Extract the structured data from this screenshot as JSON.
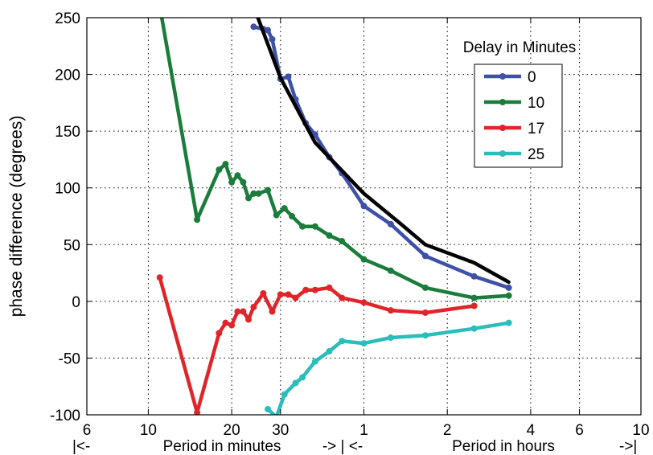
{
  "chart_data": {
    "type": "line",
    "ylabel": "phase difference (degrees)",
    "ylim": [
      -100,
      250
    ],
    "y_ticks": [
      -100,
      -50,
      0,
      50,
      100,
      150,
      200,
      250
    ],
    "x_scale": "log",
    "x_unit": "minutes",
    "xlim": [
      6,
      600
    ],
    "x_ticks": [
      {
        "value": 6,
        "label": "6"
      },
      {
        "value": 10,
        "label": "10"
      },
      {
        "value": 20,
        "label": "20"
      },
      {
        "value": 30,
        "label": "30"
      },
      {
        "value": 60,
        "label": "1"
      },
      {
        "value": 120,
        "label": "2"
      },
      {
        "value": 240,
        "label": "4"
      },
      {
        "value": 360,
        "label": "6"
      },
      {
        "value": 600,
        "label": "10"
      }
    ],
    "x_group_labels": [
      "|<-",
      "Period in minutes",
      "-> | <-",
      "Period in hours",
      "->|"
    ],
    "grid": true,
    "legend": {
      "title": "Delay in Minutes",
      "placement": "top-right"
    },
    "series": [
      {
        "name": "0",
        "color": "#3f51a6",
        "markers": true,
        "points": [
          [
            24,
            242
          ],
          [
            26,
            240
          ],
          [
            27,
            239
          ],
          [
            28,
            231
          ],
          [
            30,
            196
          ],
          [
            32,
            198
          ],
          [
            34,
            178
          ],
          [
            37,
            157
          ],
          [
            40,
            147
          ],
          [
            45,
            127
          ],
          [
            50,
            113
          ],
          [
            60,
            84
          ],
          [
            75,
            68
          ],
          [
            100,
            40
          ],
          [
            150,
            22
          ],
          [
            200,
            12
          ]
        ]
      },
      {
        "name": "10",
        "color": "#1a7d3b",
        "markers": true,
        "points": [
          [
            11,
            260
          ],
          [
            15,
            72
          ],
          [
            18,
            116
          ],
          [
            19,
            121
          ],
          [
            20,
            105
          ],
          [
            21,
            111
          ],
          [
            22,
            105
          ],
          [
            23,
            91
          ],
          [
            24,
            95
          ],
          [
            25,
            95
          ],
          [
            27,
            98
          ],
          [
            29,
            76
          ],
          [
            31,
            82
          ],
          [
            33,
            75
          ],
          [
            36,
            66
          ],
          [
            40,
            66
          ],
          [
            45,
            58
          ],
          [
            50,
            53
          ],
          [
            60,
            37
          ],
          [
            75,
            27
          ],
          [
            100,
            12
          ],
          [
            150,
            3
          ],
          [
            200,
            5
          ]
        ]
      },
      {
        "name": "17",
        "color": "#e0252a",
        "markers": true,
        "points": [
          [
            11,
            21
          ],
          [
            15,
            -98
          ],
          [
            18,
            -28
          ],
          [
            19,
            -19
          ],
          [
            20,
            -21
          ],
          [
            21,
            -9
          ],
          [
            22,
            -9
          ],
          [
            23,
            -16
          ],
          [
            24,
            -5
          ],
          [
            26,
            7
          ],
          [
            28,
            -9
          ],
          [
            30,
            6
          ],
          [
            32,
            6
          ],
          [
            34,
            3
          ],
          [
            37,
            10
          ],
          [
            40,
            10
          ],
          [
            45,
            12
          ],
          [
            50,
            3
          ],
          [
            60,
            -1
          ],
          [
            75,
            -8
          ],
          [
            100,
            -10
          ],
          [
            150,
            -4
          ]
        ]
      },
      {
        "name": "25",
        "color": "#2bbcbc",
        "markers": true,
        "points": [
          [
            27,
            -95
          ],
          [
            29,
            -102
          ],
          [
            31,
            -82
          ],
          [
            34,
            -72
          ],
          [
            36,
            -67
          ],
          [
            40,
            -53
          ],
          [
            45,
            -44
          ],
          [
            50,
            -35
          ],
          [
            60,
            -37
          ],
          [
            75,
            -32
          ],
          [
            100,
            -30
          ],
          [
            150,
            -24
          ],
          [
            200,
            -19
          ]
        ]
      },
      {
        "name": "",
        "color": "#000000",
        "markers": false,
        "points": [
          [
            24,
            260
          ],
          [
            30,
            197
          ],
          [
            40,
            140
          ],
          [
            60,
            95
          ],
          [
            80,
            70
          ],
          [
            100,
            50
          ],
          [
            150,
            34
          ],
          [
            200,
            17
          ]
        ]
      }
    ]
  }
}
